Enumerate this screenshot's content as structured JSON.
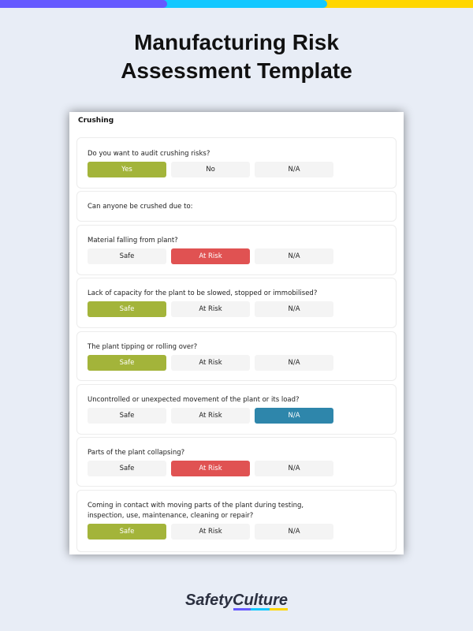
{
  "colors": {
    "purple": "#6559ff",
    "cyan": "#13c8ff",
    "yellow": "#ffd600",
    "green": "#a3b43a",
    "red": "#e05252",
    "blue": "#2e86ab"
  },
  "title_line1": "Manufacturing Risk",
  "title_line2": "Assessment Template",
  "section": "Crushing",
  "intro": {
    "question": "Do you want to audit crushing risks?",
    "options": [
      "Yes",
      "No",
      "N/A"
    ],
    "selected": "Yes"
  },
  "subheading": "Can anyone be crushed due to:",
  "questions": [
    {
      "question": "Material falling from plant?",
      "options": [
        "Safe",
        "At Risk",
        "N/A"
      ],
      "selected": "At Risk"
    },
    {
      "question": "Lack of capacity for the plant to be slowed, stopped or immobilised?",
      "options": [
        "Safe",
        "At Risk",
        "N/A"
      ],
      "selected": "Safe"
    },
    {
      "question": "The plant tipping or rolling over?",
      "options": [
        "Safe",
        "At Risk",
        "N/A"
      ],
      "selected": "Safe"
    },
    {
      "question": "Uncontrolled or unexpected movement of the plant or its load?",
      "options": [
        "Safe",
        "At Risk",
        "N/A"
      ],
      "selected": "N/A"
    },
    {
      "question": "Parts of the plant collapsing?",
      "options": [
        "Safe",
        "At Risk",
        "N/A"
      ],
      "selected": "At Risk"
    },
    {
      "question": "Coming in contact with moving parts of the plant during testing, inspection, use, maintenance, cleaning or repair?",
      "options": [
        "Safe",
        "At Risk",
        "N/A"
      ],
      "selected": "Safe"
    }
  ],
  "logo": "SafetyCulture"
}
